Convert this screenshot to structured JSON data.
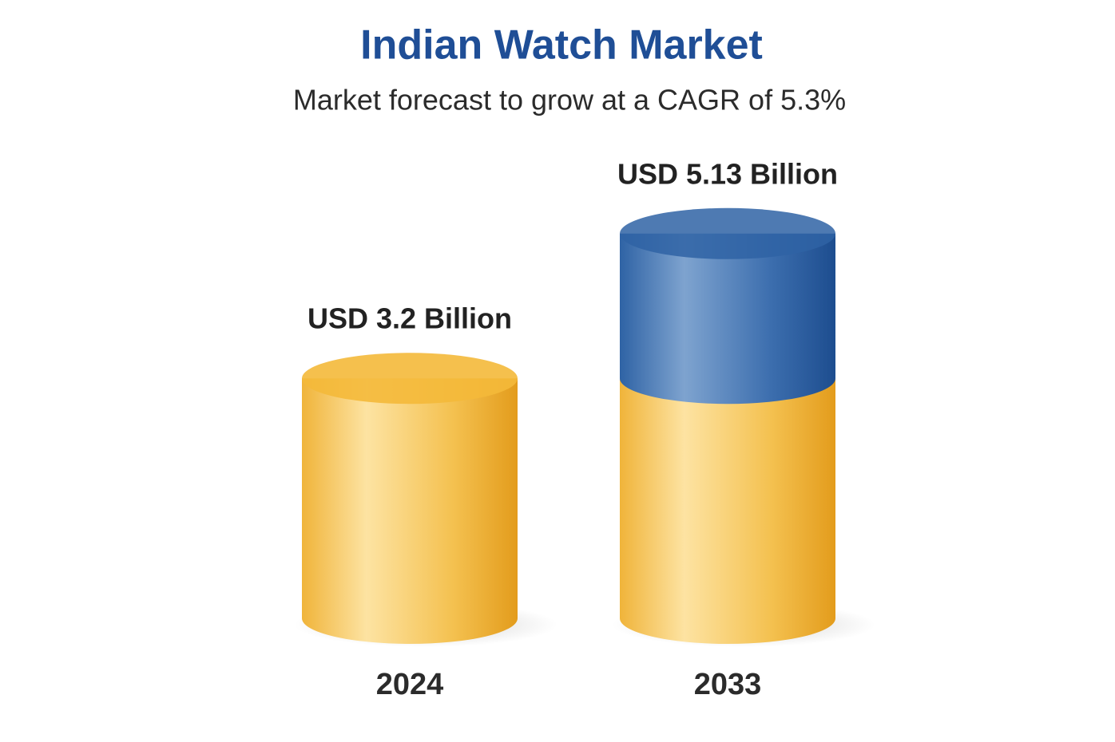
{
  "chart_data": {
    "type": "bar",
    "title": "Indian Watch Market",
    "subtitle": "Market forecast to grow at a CAGR of 5.3%",
    "categories": [
      "2024",
      "2033"
    ],
    "values": [
      3.2,
      5.13
    ],
    "value_labels": [
      "USD 3.2 Billion",
      "USD 5.13 Billion"
    ],
    "colors": [
      "#f4b93a",
      "#2f63a5"
    ]
  }
}
